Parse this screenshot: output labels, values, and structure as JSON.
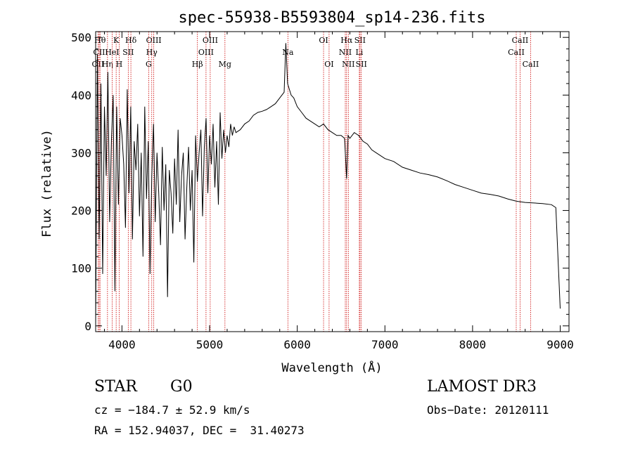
{
  "chart_data": {
    "type": "line",
    "title": "spec-55938-B5593804_sp14-236.fits",
    "xlabel": "Wavelength (Å)",
    "ylabel": "Flux (relative)",
    "xlim": [
      3700,
      9100
    ],
    "ylim": [
      -10,
      510
    ],
    "x_ticks": [
      4000,
      5000,
      6000,
      7000,
      8000,
      9000
    ],
    "x_tick_labels": [
      "4000",
      "5000",
      "6000",
      "7000",
      "8000",
      "9000"
    ],
    "y_ticks": [
      0,
      100,
      200,
      300,
      400,
      500
    ],
    "y_tick_labels": [
      "0",
      "100",
      "200",
      "300",
      "400",
      "500"
    ],
    "grid": false,
    "series": [
      {
        "name": "flux",
        "x": [
          3700,
          3720,
          3740,
          3760,
          3780,
          3800,
          3820,
          3840,
          3860,
          3880,
          3900,
          3920,
          3940,
          3960,
          3980,
          4000,
          4020,
          4040,
          4060,
          4080,
          4100,
          4120,
          4140,
          4160,
          4180,
          4200,
          4220,
          4240,
          4260,
          4280,
          4300,
          4320,
          4340,
          4360,
          4380,
          4400,
          4420,
          4440,
          4460,
          4480,
          4500,
          4520,
          4540,
          4560,
          4580,
          4600,
          4620,
          4640,
          4660,
          4680,
          4700,
          4720,
          4740,
          4760,
          4780,
          4800,
          4820,
          4840,
          4860,
          4880,
          4900,
          4920,
          4940,
          4960,
          4980,
          5000,
          5020,
          5040,
          5060,
          5080,
          5100,
          5120,
          5140,
          5160,
          5180,
          5200,
          5220,
          5240,
          5260,
          5280,
          5300,
          5350,
          5400,
          5450,
          5500,
          5550,
          5600,
          5650,
          5700,
          5750,
          5800,
          5850,
          5870,
          5890,
          5910,
          5930,
          5960,
          6000,
          6050,
          6100,
          6150,
          6200,
          6250,
          6300,
          6350,
          6400,
          6450,
          6500,
          6540,
          6563,
          6580,
          6600,
          6650,
          6700,
          6750,
          6800,
          6850,
          6900,
          7000,
          7100,
          7200,
          7300,
          7400,
          7500,
          7600,
          7700,
          7800,
          7900,
          8000,
          8100,
          8200,
          8300,
          8400,
          8500,
          8600,
          8700,
          8800,
          8900,
          8950,
          8980,
          9000
        ],
        "values": [
          0,
          470,
          150,
          420,
          90,
          380,
          260,
          440,
          180,
          320,
          400,
          60,
          380,
          210,
          360,
          330,
          280,
          170,
          410,
          230,
          380,
          150,
          320,
          270,
          350,
          190,
          300,
          120,
          380,
          220,
          320,
          90,
          260,
          350,
          180,
          300,
          230,
          140,
          310,
          200,
          280,
          50,
          270,
          230,
          160,
          290,
          210,
          340,
          180,
          260,
          300,
          150,
          240,
          310,
          200,
          270,
          110,
          330,
          250,
          300,
          340,
          190,
          310,
          360,
          230,
          330,
          280,
          350,
          240,
          320,
          210,
          370,
          290,
          340,
          300,
          330,
          310,
          350,
          330,
          345,
          335,
          340,
          350,
          355,
          365,
          370,
          372,
          375,
          380,
          385,
          395,
          405,
          490,
          420,
          410,
          400,
          395,
          380,
          370,
          360,
          355,
          350,
          345,
          350,
          340,
          335,
          330,
          330,
          325,
          255,
          330,
          325,
          335,
          330,
          320,
          315,
          305,
          300,
          290,
          285,
          275,
          270,
          265,
          262,
          258,
          252,
          245,
          240,
          235,
          230,
          228,
          225,
          220,
          216,
          214,
          213,
          212,
          210,
          205,
          100,
          30
        ]
      }
    ],
    "lines": [
      {
        "label": "OII",
        "x": 3727,
        "row": 3
      },
      {
        "label": "CII",
        "x": 3740,
        "row": 2
      },
      {
        "label": "Hθ",
        "x": 3750,
        "row": 1
      },
      {
        "label": "Hη",
        "x": 3835,
        "row": 3
      },
      {
        "label": "HeI",
        "x": 3888,
        "row": 2
      },
      {
        "label": "K",
        "x": 3934,
        "row": 1
      },
      {
        "label": "H",
        "x": 3968,
        "row": 3
      },
      {
        "label": "SII",
        "x": 4072,
        "row": 2
      },
      {
        "label": "Hδ",
        "x": 4102,
        "row": 1
      },
      {
        "label": "OIII",
        "x": 4363,
        "row": 1
      },
      {
        "label": "Hγ",
        "x": 4340,
        "row": 2
      },
      {
        "label": "G",
        "x": 4305,
        "row": 3
      },
      {
        "label": "Hβ",
        "x": 4861,
        "row": 3
      },
      {
        "label": "OIII",
        "x": 4959,
        "row": 2
      },
      {
        "label": "OIII",
        "x": 5007,
        "row": 1
      },
      {
        "label": "Mg",
        "x": 5175,
        "row": 3
      },
      {
        "label": "Na",
        "x": 5893,
        "row": 2
      },
      {
        "label": "OI",
        "x": 6300,
        "row": 1
      },
      {
        "label": "OI",
        "x": 6363,
        "row": 3
      },
      {
        "label": "NII",
        "x": 6548,
        "row": 2
      },
      {
        "label": "Hα",
        "x": 6563,
        "row": 1
      },
      {
        "label": "NII",
        "x": 6583,
        "row": 3
      },
      {
        "label": "SII",
        "x": 6716,
        "row": 1
      },
      {
        "label": "Li",
        "x": 6708,
        "row": 2
      },
      {
        "label": "SII",
        "x": 6731,
        "row": 3
      },
      {
        "label": "CaII",
        "x": 8498,
        "row": 2
      },
      {
        "label": "CaII",
        "x": 8542,
        "row": 1
      },
      {
        "label": "CaII",
        "x": 8662,
        "row": 3
      }
    ]
  },
  "info": {
    "class": "STAR",
    "subclass": "G0",
    "survey": "LAMOST DR3",
    "cz": "cz = −184.7 ± 52.9 km/s",
    "obs_date": "Obs−Date: 20120111",
    "radec": "RA = 152.94037, DEC =  31.40273"
  }
}
